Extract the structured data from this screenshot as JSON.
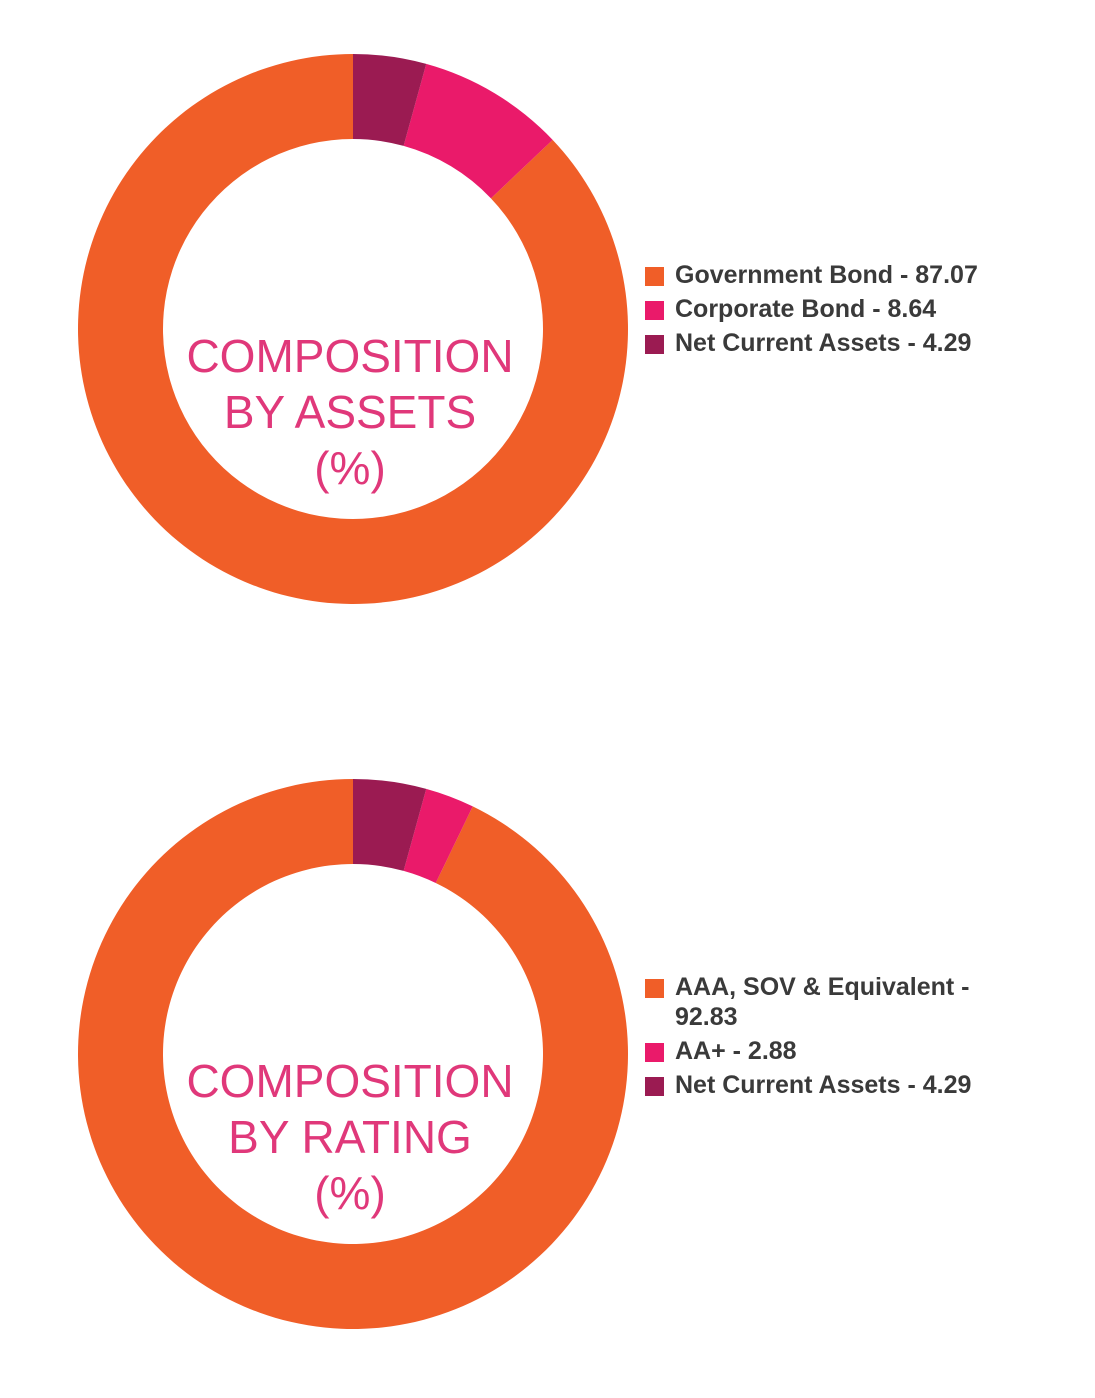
{
  "chart_data": [
    {
      "type": "pie",
      "variant": "donut",
      "title_lines": [
        "COMPOSITION",
        "BY ASSETS",
        "(%)"
      ],
      "slices": [
        {
          "label": "Government Bond - 87.07",
          "name": "Government Bond",
          "value": 87.07,
          "color": "#f05e28"
        },
        {
          "label": "Corporate Bond - 8.64",
          "name": "Corporate Bond",
          "value": 8.64,
          "color": "#ea1a6a"
        },
        {
          "label": "Net Current Assets - 4.29",
          "name": "Net Current Assets",
          "value": 4.29,
          "color": "#9b1b52"
        }
      ],
      "legend_position": "right"
    },
    {
      "type": "pie",
      "variant": "donut",
      "title_lines": [
        "COMPOSITION",
        "BY RATING",
        "(%)"
      ],
      "slices": [
        {
          "label": "AAA, SOV & Equivalent - 92.83",
          "name": "AAA, SOV & Equivalent",
          "value": 92.83,
          "color": "#f05e28"
        },
        {
          "label": "AA+ - 2.88",
          "name": "AA+",
          "value": 2.88,
          "color": "#ea1a6a"
        },
        {
          "label": "Net Current Assets - 4.29",
          "name": "Net Current Assets",
          "value": 4.29,
          "color": "#9b1b52"
        }
      ],
      "legend_position": "right"
    }
  ],
  "colors": {
    "center_label": "#e0387a",
    "legend_text": "#3a3a3a"
  }
}
